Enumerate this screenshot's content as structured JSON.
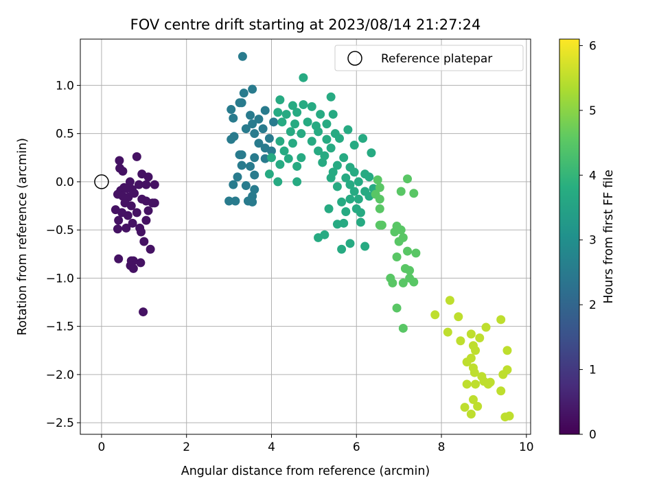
{
  "chart_data": {
    "type": "scatter",
    "title": "FOV centre drift starting at 2023/08/14 21:27:24",
    "xlabel": "Angular distance from reference (arcmin)",
    "ylabel": "Rotation from reference (arcmin)",
    "xlim": [
      -0.5,
      10.1
    ],
    "ylim": [
      -2.62,
      1.48
    ],
    "xticks": [
      "0",
      "2",
      "4",
      "6",
      "8",
      "10"
    ],
    "yticks": [
      "1.0",
      "0.5",
      "0.0",
      "−0.5",
      "−1.0",
      "−1.5",
      "−2.0",
      "−2.5"
    ],
    "grid": true,
    "legend": {
      "placement": "top-right",
      "entries": [
        "Reference platepar"
      ]
    },
    "reference_point": {
      "x": 0.0,
      "y": 0.0,
      "label": "Reference platepar"
    },
    "colorbar": {
      "label": "Hours from first FF file",
      "range": [
        0,
        6.1
      ],
      "ticks": [
        "0",
        "1",
        "2",
        "3",
        "4",
        "5",
        "6"
      ],
      "colormap": "viridis"
    },
    "points": [
      {
        "x": 0.42,
        "y": 0.22,
        "c": 0.3
      },
      {
        "x": 0.43,
        "y": 0.14,
        "c": 0.3
      },
      {
        "x": 0.5,
        "y": 0.11,
        "c": 0.3
      },
      {
        "x": 0.83,
        "y": 0.26,
        "c": 0.3
      },
      {
        "x": 0.67,
        "y": 0.0,
        "c": 0.3
      },
      {
        "x": 0.53,
        "y": -0.06,
        "c": 0.3
      },
      {
        "x": 0.45,
        "y": -0.09,
        "c": 0.3
      },
      {
        "x": 0.6,
        "y": -0.07,
        "c": 0.3
      },
      {
        "x": 0.72,
        "y": -0.08,
        "c": 0.3
      },
      {
        "x": 0.38,
        "y": -0.13,
        "c": 0.3
      },
      {
        "x": 0.5,
        "y": -0.15,
        "c": 0.3
      },
      {
        "x": 0.63,
        "y": -0.16,
        "c": 0.3
      },
      {
        "x": 0.77,
        "y": -0.12,
        "c": 0.3
      },
      {
        "x": 0.88,
        "y": -0.03,
        "c": 0.3
      },
      {
        "x": 0.95,
        "y": 0.08,
        "c": 0.3
      },
      {
        "x": 1.1,
        "y": 0.05,
        "c": 0.3
      },
      {
        "x": 1.05,
        "y": -0.03,
        "c": 0.3
      },
      {
        "x": 1.25,
        "y": -0.03,
        "c": 0.3
      },
      {
        "x": 0.95,
        "y": -0.18,
        "c": 0.3
      },
      {
        "x": 1.05,
        "y": -0.2,
        "c": 0.3
      },
      {
        "x": 1.2,
        "y": -0.22,
        "c": 0.3
      },
      {
        "x": 1.25,
        "y": -0.22,
        "c": 0.3
      },
      {
        "x": 1.1,
        "y": -0.3,
        "c": 0.3
      },
      {
        "x": 0.55,
        "y": -0.22,
        "c": 0.3
      },
      {
        "x": 0.7,
        "y": -0.25,
        "c": 0.3
      },
      {
        "x": 0.33,
        "y": -0.29,
        "c": 0.3
      },
      {
        "x": 0.48,
        "y": -0.32,
        "c": 0.3
      },
      {
        "x": 0.62,
        "y": -0.35,
        "c": 0.3
      },
      {
        "x": 0.83,
        "y": -0.32,
        "c": 0.3
      },
      {
        "x": 1.05,
        "y": -0.4,
        "c": 0.3
      },
      {
        "x": 0.4,
        "y": -0.4,
        "c": 0.3
      },
      {
        "x": 0.73,
        "y": -0.43,
        "c": 0.3
      },
      {
        "x": 0.58,
        "y": -0.48,
        "c": 0.3
      },
      {
        "x": 0.38,
        "y": -0.49,
        "c": 0.3
      },
      {
        "x": 0.9,
        "y": -0.48,
        "c": 0.3
      },
      {
        "x": 0.93,
        "y": -0.52,
        "c": 0.3
      },
      {
        "x": 1.0,
        "y": -0.62,
        "c": 0.3
      },
      {
        "x": 1.15,
        "y": -0.7,
        "c": 0.3
      },
      {
        "x": 0.4,
        "y": -0.8,
        "c": 0.3
      },
      {
        "x": 0.7,
        "y": -0.82,
        "c": 0.3
      },
      {
        "x": 0.75,
        "y": -0.82,
        "c": 0.3
      },
      {
        "x": 0.68,
        "y": -0.87,
        "c": 0.3
      },
      {
        "x": 0.75,
        "y": -0.9,
        "c": 0.3
      },
      {
        "x": 0.92,
        "y": -0.84,
        "c": 0.3
      },
      {
        "x": 0.98,
        "y": -1.35,
        "c": 0.3
      },
      {
        "x": 3.32,
        "y": 1.3,
        "c": 2.5
      },
      {
        "x": 3.35,
        "y": 0.92,
        "c": 2.5
      },
      {
        "x": 3.55,
        "y": 0.96,
        "c": 2.5
      },
      {
        "x": 3.25,
        "y": 0.82,
        "c": 2.5
      },
      {
        "x": 3.3,
        "y": 0.82,
        "c": 2.5
      },
      {
        "x": 3.05,
        "y": 0.75,
        "c": 2.5
      },
      {
        "x": 3.1,
        "y": 0.66,
        "c": 2.5
      },
      {
        "x": 3.5,
        "y": 0.69,
        "c": 2.5
      },
      {
        "x": 3.7,
        "y": 0.65,
        "c": 2.5
      },
      {
        "x": 3.85,
        "y": 0.74,
        "c": 2.5
      },
      {
        "x": 3.55,
        "y": 0.6,
        "c": 2.5
      },
      {
        "x": 3.4,
        "y": 0.55,
        "c": 2.5
      },
      {
        "x": 3.6,
        "y": 0.5,
        "c": 2.5
      },
      {
        "x": 3.8,
        "y": 0.55,
        "c": 2.5
      },
      {
        "x": 3.95,
        "y": 0.45,
        "c": 2.5
      },
      {
        "x": 4.05,
        "y": 0.62,
        "c": 2.5
      },
      {
        "x": 3.12,
        "y": 0.47,
        "c": 2.5
      },
      {
        "x": 3.05,
        "y": 0.44,
        "c": 2.5
      },
      {
        "x": 3.7,
        "y": 0.4,
        "c": 2.5
      },
      {
        "x": 3.85,
        "y": 0.35,
        "c": 2.5
      },
      {
        "x": 4.0,
        "y": 0.32,
        "c": 2.5
      },
      {
        "x": 3.25,
        "y": 0.28,
        "c": 2.5
      },
      {
        "x": 3.3,
        "y": 0.28,
        "c": 2.5
      },
      {
        "x": 3.6,
        "y": 0.25,
        "c": 2.5
      },
      {
        "x": 3.85,
        "y": 0.24,
        "c": 2.5
      },
      {
        "x": 3.3,
        "y": 0.17,
        "c": 2.5
      },
      {
        "x": 3.5,
        "y": 0.16,
        "c": 2.5
      },
      {
        "x": 3.2,
        "y": 0.05,
        "c": 2.5
      },
      {
        "x": 3.6,
        "y": 0.07,
        "c": 2.5
      },
      {
        "x": 3.1,
        "y": -0.03,
        "c": 2.5
      },
      {
        "x": 3.4,
        "y": -0.04,
        "c": 2.5
      },
      {
        "x": 3.6,
        "y": -0.08,
        "c": 2.5
      },
      {
        "x": 3.55,
        "y": -0.15,
        "c": 2.5
      },
      {
        "x": 3.15,
        "y": -0.2,
        "c": 2.5
      },
      {
        "x": 3.45,
        "y": -0.2,
        "c": 2.5
      },
      {
        "x": 3.55,
        "y": -0.21,
        "c": 2.5
      },
      {
        "x": 3.0,
        "y": -0.2,
        "c": 2.5
      },
      {
        "x": 4.75,
        "y": 1.08,
        "c": 3.7
      },
      {
        "x": 5.4,
        "y": 0.88,
        "c": 3.7
      },
      {
        "x": 4.2,
        "y": 0.85,
        "c": 3.7
      },
      {
        "x": 4.5,
        "y": 0.79,
        "c": 3.7
      },
      {
        "x": 4.75,
        "y": 0.8,
        "c": 3.7
      },
      {
        "x": 4.95,
        "y": 0.78,
        "c": 3.7
      },
      {
        "x": 4.15,
        "y": 0.72,
        "c": 3.7
      },
      {
        "x": 4.35,
        "y": 0.7,
        "c": 3.7
      },
      {
        "x": 4.6,
        "y": 0.72,
        "c": 3.7
      },
      {
        "x": 5.15,
        "y": 0.7,
        "c": 3.7
      },
      {
        "x": 5.45,
        "y": 0.7,
        "c": 3.7
      },
      {
        "x": 4.25,
        "y": 0.62,
        "c": 3.7
      },
      {
        "x": 4.55,
        "y": 0.6,
        "c": 3.7
      },
      {
        "x": 4.85,
        "y": 0.62,
        "c": 3.7
      },
      {
        "x": 5.05,
        "y": 0.58,
        "c": 3.7
      },
      {
        "x": 5.3,
        "y": 0.6,
        "c": 3.7
      },
      {
        "x": 4.45,
        "y": 0.52,
        "c": 3.7
      },
      {
        "x": 4.7,
        "y": 0.5,
        "c": 3.7
      },
      {
        "x": 5.1,
        "y": 0.52,
        "c": 3.7
      },
      {
        "x": 5.5,
        "y": 0.5,
        "c": 3.7
      },
      {
        "x": 5.8,
        "y": 0.54,
        "c": 3.7
      },
      {
        "x": 4.2,
        "y": 0.42,
        "c": 3.7
      },
      {
        "x": 4.5,
        "y": 0.4,
        "c": 3.7
      },
      {
        "x": 4.95,
        "y": 0.42,
        "c": 3.7
      },
      {
        "x": 5.3,
        "y": 0.44,
        "c": 3.7
      },
      {
        "x": 5.6,
        "y": 0.45,
        "c": 3.7
      },
      {
        "x": 6.15,
        "y": 0.45,
        "c": 3.7
      },
      {
        "x": 4.3,
        "y": 0.32,
        "c": 3.7
      },
      {
        "x": 5.1,
        "y": 0.32,
        "c": 3.7
      },
      {
        "x": 5.4,
        "y": 0.35,
        "c": 3.7
      },
      {
        "x": 5.95,
        "y": 0.38,
        "c": 3.7
      },
      {
        "x": 4.0,
        "y": 0.25,
        "c": 3.7
      },
      {
        "x": 4.4,
        "y": 0.24,
        "c": 3.7
      },
      {
        "x": 4.7,
        "y": 0.25,
        "c": 3.7
      },
      {
        "x": 5.25,
        "y": 0.27,
        "c": 3.7
      },
      {
        "x": 5.7,
        "y": 0.25,
        "c": 3.7
      },
      {
        "x": 6.35,
        "y": 0.3,
        "c": 3.7
      },
      {
        "x": 4.2,
        "y": 0.18,
        "c": 3.7
      },
      {
        "x": 4.6,
        "y": 0.16,
        "c": 3.7
      },
      {
        "x": 5.2,
        "y": 0.2,
        "c": 3.7
      },
      {
        "x": 5.55,
        "y": 0.17,
        "c": 3.7
      },
      {
        "x": 5.85,
        "y": 0.15,
        "c": 3.7
      },
      {
        "x": 5.45,
        "y": 0.1,
        "c": 3.7
      },
      {
        "x": 5.95,
        "y": 0.1,
        "c": 3.7
      },
      {
        "x": 6.2,
        "y": 0.08,
        "c": 3.7
      },
      {
        "x": 5.4,
        "y": 0.04,
        "c": 3.7
      },
      {
        "x": 5.75,
        "y": 0.04,
        "c": 3.7
      },
      {
        "x": 6.05,
        "y": 0.0,
        "c": 3.7
      },
      {
        "x": 6.3,
        "y": 0.05,
        "c": 3.7
      },
      {
        "x": 5.55,
        "y": -0.05,
        "c": 3.7
      },
      {
        "x": 5.85,
        "y": -0.03,
        "c": 3.7
      },
      {
        "x": 4.15,
        "y": 0.0,
        "c": 3.7
      },
      {
        "x": 4.6,
        "y": 0.0,
        "c": 3.7
      },
      {
        "x": 3.95,
        "y": 0.08,
        "c": 3.7
      },
      {
        "x": 5.95,
        "y": -0.1,
        "c": 3.7
      },
      {
        "x": 6.2,
        "y": -0.1,
        "c": 3.7
      },
      {
        "x": 6.4,
        "y": -0.07,
        "c": 3.7
      },
      {
        "x": 5.85,
        "y": -0.18,
        "c": 3.7
      },
      {
        "x": 6.05,
        "y": -0.18,
        "c": 3.7
      },
      {
        "x": 6.3,
        "y": -0.15,
        "c": 3.7
      },
      {
        "x": 5.65,
        "y": -0.21,
        "c": 3.7
      },
      {
        "x": 6.0,
        "y": -0.28,
        "c": 3.7
      },
      {
        "x": 5.35,
        "y": -0.28,
        "c": 3.7
      },
      {
        "x": 5.75,
        "y": -0.31,
        "c": 3.7
      },
      {
        "x": 5.7,
        "y": -0.43,
        "c": 3.7
      },
      {
        "x": 5.55,
        "y": -0.44,
        "c": 3.7
      },
      {
        "x": 6.1,
        "y": -0.32,
        "c": 3.7
      },
      {
        "x": 6.1,
        "y": -0.42,
        "c": 3.7
      },
      {
        "x": 5.1,
        "y": -0.58,
        "c": 3.7
      },
      {
        "x": 5.25,
        "y": -0.55,
        "c": 3.7
      },
      {
        "x": 5.85,
        "y": -0.64,
        "c": 3.7
      },
      {
        "x": 6.2,
        "y": -0.67,
        "c": 3.7
      },
      {
        "x": 5.65,
        "y": -0.7,
        "c": 3.7
      },
      {
        "x": 6.5,
        "y": 0.02,
        "c": 4.5
      },
      {
        "x": 6.55,
        "y": -0.06,
        "c": 4.5
      },
      {
        "x": 6.45,
        "y": -0.13,
        "c": 4.5
      },
      {
        "x": 6.55,
        "y": -0.18,
        "c": 4.5
      },
      {
        "x": 6.55,
        "y": -0.28,
        "c": 4.5
      },
      {
        "x": 7.05,
        "y": -0.1,
        "c": 4.5
      },
      {
        "x": 7.2,
        "y": 0.03,
        "c": 4.5
      },
      {
        "x": 7.35,
        "y": -0.12,
        "c": 4.5
      },
      {
        "x": 6.55,
        "y": -0.45,
        "c": 4.5
      },
      {
        "x": 6.6,
        "y": -0.45,
        "c": 4.5
      },
      {
        "x": 6.95,
        "y": -0.46,
        "c": 4.5
      },
      {
        "x": 6.9,
        "y": -0.52,
        "c": 4.5
      },
      {
        "x": 7.05,
        "y": -0.5,
        "c": 4.5
      },
      {
        "x": 7.1,
        "y": -0.58,
        "c": 4.5
      },
      {
        "x": 7.0,
        "y": -0.62,
        "c": 4.5
      },
      {
        "x": 7.2,
        "y": -0.72,
        "c": 4.5
      },
      {
        "x": 7.4,
        "y": -0.74,
        "c": 4.5
      },
      {
        "x": 6.95,
        "y": -0.78,
        "c": 4.5
      },
      {
        "x": 7.15,
        "y": -0.9,
        "c": 4.5
      },
      {
        "x": 7.25,
        "y": -0.92,
        "c": 4.5
      },
      {
        "x": 7.25,
        "y": -1.0,
        "c": 4.5
      },
      {
        "x": 6.8,
        "y": -1.0,
        "c": 4.5
      },
      {
        "x": 6.85,
        "y": -1.05,
        "c": 4.5
      },
      {
        "x": 7.1,
        "y": -1.05,
        "c": 4.5
      },
      {
        "x": 7.35,
        "y": -1.04,
        "c": 4.5
      },
      {
        "x": 6.95,
        "y": -1.31,
        "c": 4.5
      },
      {
        "x": 7.1,
        "y": -1.52,
        "c": 4.5
      },
      {
        "x": 7.85,
        "y": -1.38,
        "c": 5.5
      },
      {
        "x": 8.2,
        "y": -1.23,
        "c": 5.5
      },
      {
        "x": 8.4,
        "y": -1.4,
        "c": 5.5
      },
      {
        "x": 8.15,
        "y": -1.56,
        "c": 5.5
      },
      {
        "x": 8.45,
        "y": -1.65,
        "c": 5.5
      },
      {
        "x": 8.7,
        "y": -1.58,
        "c": 5.5
      },
      {
        "x": 8.9,
        "y": -1.62,
        "c": 5.5
      },
      {
        "x": 8.75,
        "y": -1.7,
        "c": 5.5
      },
      {
        "x": 8.8,
        "y": -1.75,
        "c": 5.5
      },
      {
        "x": 8.7,
        "y": -1.83,
        "c": 5.5
      },
      {
        "x": 8.6,
        "y": -1.87,
        "c": 5.5
      },
      {
        "x": 8.75,
        "y": -1.93,
        "c": 5.5
      },
      {
        "x": 8.78,
        "y": -1.98,
        "c": 5.5
      },
      {
        "x": 8.95,
        "y": -2.02,
        "c": 5.5
      },
      {
        "x": 9.0,
        "y": -2.07,
        "c": 5.5
      },
      {
        "x": 9.1,
        "y": -2.1,
        "c": 5.5
      },
      {
        "x": 9.15,
        "y": -2.08,
        "c": 5.5
      },
      {
        "x": 8.6,
        "y": -2.1,
        "c": 5.5
      },
      {
        "x": 8.8,
        "y": -2.1,
        "c": 5.5
      },
      {
        "x": 9.05,
        "y": -1.51,
        "c": 5.5
      },
      {
        "x": 9.4,
        "y": -1.43,
        "c": 5.5
      },
      {
        "x": 9.55,
        "y": -1.75,
        "c": 5.5
      },
      {
        "x": 9.55,
        "y": -1.95,
        "c": 5.5
      },
      {
        "x": 9.45,
        "y": -2.0,
        "c": 5.5
      },
      {
        "x": 9.4,
        "y": -2.17,
        "c": 5.5
      },
      {
        "x": 8.55,
        "y": -2.34,
        "c": 5.5
      },
      {
        "x": 8.75,
        "y": -2.26,
        "c": 5.5
      },
      {
        "x": 8.85,
        "y": -2.33,
        "c": 5.5
      },
      {
        "x": 8.7,
        "y": -2.41,
        "c": 5.5
      },
      {
        "x": 9.5,
        "y": -2.44,
        "c": 5.5
      },
      {
        "x": 9.6,
        "y": -2.43,
        "c": 5.5
      }
    ]
  }
}
